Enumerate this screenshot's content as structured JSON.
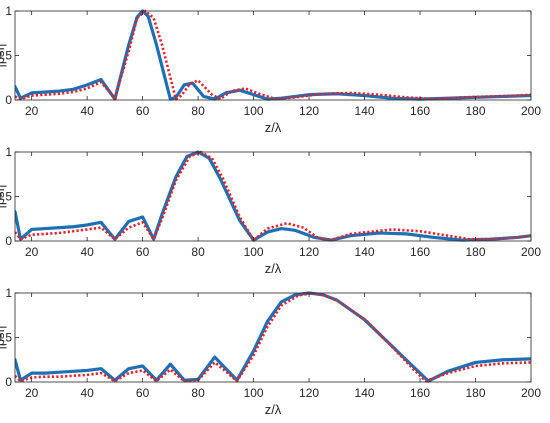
{
  "chart_data": [
    {
      "type": "line",
      "xlabel": "z/λ",
      "ylabel": "|psf|",
      "xlim": [
        14,
        200
      ],
      "ylim": [
        0,
        1
      ],
      "xticks": [
        20,
        40,
        60,
        80,
        100,
        120,
        140,
        160,
        180,
        200
      ],
      "yticks": [
        0,
        0.5,
        1
      ],
      "grid": false,
      "peak_z": 60,
      "series": [
        {
          "color": "#1f6fb4",
          "style": "solid",
          "x": [
            14,
            16,
            20,
            25,
            30,
            35,
            40,
            45,
            50,
            55,
            58,
            60,
            62,
            65,
            70,
            72,
            75,
            78,
            82,
            86,
            90,
            95,
            100,
            105,
            110,
            120,
            130,
            140,
            150,
            160,
            170,
            180,
            190,
            200
          ],
          "y": [
            0.15,
            0.02,
            0.08,
            0.09,
            0.1,
            0.12,
            0.17,
            0.23,
            0.01,
            0.62,
            0.93,
            1.0,
            0.94,
            0.62,
            0.01,
            0.03,
            0.17,
            0.19,
            0.04,
            0.01,
            0.08,
            0.11,
            0.06,
            0.01,
            0.02,
            0.06,
            0.07,
            0.05,
            0.02,
            0.01,
            0.02,
            0.03,
            0.04,
            0.05
          ]
        },
        {
          "color": "#e8202a",
          "style": "dotted",
          "x": [
            14,
            16,
            20,
            25,
            30,
            35,
            40,
            45,
            50,
            55,
            58,
            61,
            64,
            67,
            72,
            74,
            77,
            80,
            85,
            88,
            92,
            97,
            102,
            108,
            115,
            125,
            135,
            145,
            155,
            165,
            175,
            185,
            195,
            200
          ],
          "y": [
            0.04,
            0.01,
            0.05,
            0.06,
            0.07,
            0.09,
            0.13,
            0.2,
            0.02,
            0.55,
            0.92,
            1.0,
            0.92,
            0.62,
            0.01,
            0.05,
            0.18,
            0.22,
            0.06,
            0.01,
            0.1,
            0.13,
            0.07,
            0.01,
            0.03,
            0.07,
            0.08,
            0.06,
            0.03,
            0.01,
            0.03,
            0.04,
            0.05,
            0.06
          ]
        }
      ]
    },
    {
      "type": "line",
      "xlabel": "z/λ",
      "ylabel": "|psf|",
      "xlim": [
        14,
        200
      ],
      "ylim": [
        0,
        1
      ],
      "xticks": [
        20,
        40,
        60,
        80,
        100,
        120,
        140,
        160,
        180,
        200
      ],
      "yticks": [
        0,
        0.5,
        1
      ],
      "grid": false,
      "peak_z": 80,
      "series": [
        {
          "color": "#1f6fb4",
          "style": "solid",
          "x": [
            14,
            16,
            20,
            25,
            30,
            35,
            40,
            45,
            50,
            55,
            60,
            64,
            67,
            72,
            76,
            80,
            84,
            88,
            95,
            100,
            105,
            110,
            115,
            122,
            128,
            135,
            145,
            155,
            165,
            175,
            185,
            195,
            200
          ],
          "y": [
            0.33,
            0.02,
            0.13,
            0.14,
            0.15,
            0.16,
            0.18,
            0.21,
            0.02,
            0.22,
            0.27,
            0.02,
            0.3,
            0.72,
            0.95,
            1.0,
            0.93,
            0.7,
            0.23,
            0.01,
            0.1,
            0.14,
            0.12,
            0.04,
            0.01,
            0.06,
            0.09,
            0.08,
            0.04,
            0.01,
            0.02,
            0.04,
            0.06
          ]
        },
        {
          "color": "#e8202a",
          "style": "dotted",
          "x": [
            14,
            16,
            20,
            25,
            30,
            35,
            40,
            45,
            50,
            55,
            60,
            64,
            67,
            72,
            77,
            81,
            85,
            89,
            95,
            100,
            105,
            112,
            118,
            123,
            128,
            135,
            150,
            160,
            170,
            178,
            185,
            195,
            200
          ],
          "y": [
            0.1,
            0.02,
            0.07,
            0.08,
            0.09,
            0.11,
            0.13,
            0.15,
            0.02,
            0.15,
            0.21,
            0.02,
            0.25,
            0.68,
            0.95,
            1.0,
            0.93,
            0.7,
            0.27,
            0.01,
            0.14,
            0.2,
            0.15,
            0.04,
            0.01,
            0.08,
            0.13,
            0.11,
            0.06,
            0.02,
            0.02,
            0.04,
            0.06
          ]
        }
      ]
    },
    {
      "type": "line",
      "xlabel": "z/λ",
      "ylabel": "|psf|",
      "xlim": [
        14,
        200
      ],
      "ylim": [
        0,
        1
      ],
      "xticks": [
        20,
        40,
        60,
        80,
        100,
        120,
        140,
        160,
        180,
        200
      ],
      "yticks": [
        0,
        0.5,
        1
      ],
      "grid": false,
      "peak_z": 120,
      "series": [
        {
          "color": "#1f6fb4",
          "style": "solid",
          "x": [
            14,
            16,
            20,
            25,
            30,
            35,
            40,
            45,
            50,
            55,
            60,
            65,
            70,
            75,
            80,
            86,
            90,
            94,
            100,
            105,
            110,
            115,
            120,
            125,
            130,
            140,
            150,
            160,
            163,
            170,
            180,
            190,
            200
          ],
          "y": [
            0.25,
            0.02,
            0.1,
            0.1,
            0.11,
            0.12,
            0.13,
            0.15,
            0.02,
            0.15,
            0.18,
            0.02,
            0.2,
            0.02,
            0.03,
            0.28,
            0.15,
            0.02,
            0.35,
            0.68,
            0.9,
            0.98,
            1.0,
            0.98,
            0.92,
            0.7,
            0.4,
            0.1,
            0.01,
            0.12,
            0.22,
            0.25,
            0.26
          ]
        },
        {
          "color": "#e8202a",
          "style": "dotted",
          "x": [
            14,
            16,
            20,
            25,
            30,
            35,
            40,
            45,
            50,
            55,
            60,
            65,
            70,
            75,
            80,
            86,
            90,
            94,
            100,
            105,
            110,
            116,
            121,
            126,
            131,
            141,
            151,
            158,
            162,
            170,
            180,
            190,
            200
          ],
          "y": [
            0.07,
            0.01,
            0.05,
            0.06,
            0.06,
            0.07,
            0.08,
            0.1,
            0.01,
            0.1,
            0.13,
            0.01,
            0.14,
            0.01,
            0.02,
            0.22,
            0.12,
            0.01,
            0.3,
            0.62,
            0.86,
            0.97,
            1.0,
            0.97,
            0.9,
            0.68,
            0.36,
            0.13,
            0.01,
            0.1,
            0.18,
            0.21,
            0.22
          ]
        }
      ]
    }
  ]
}
